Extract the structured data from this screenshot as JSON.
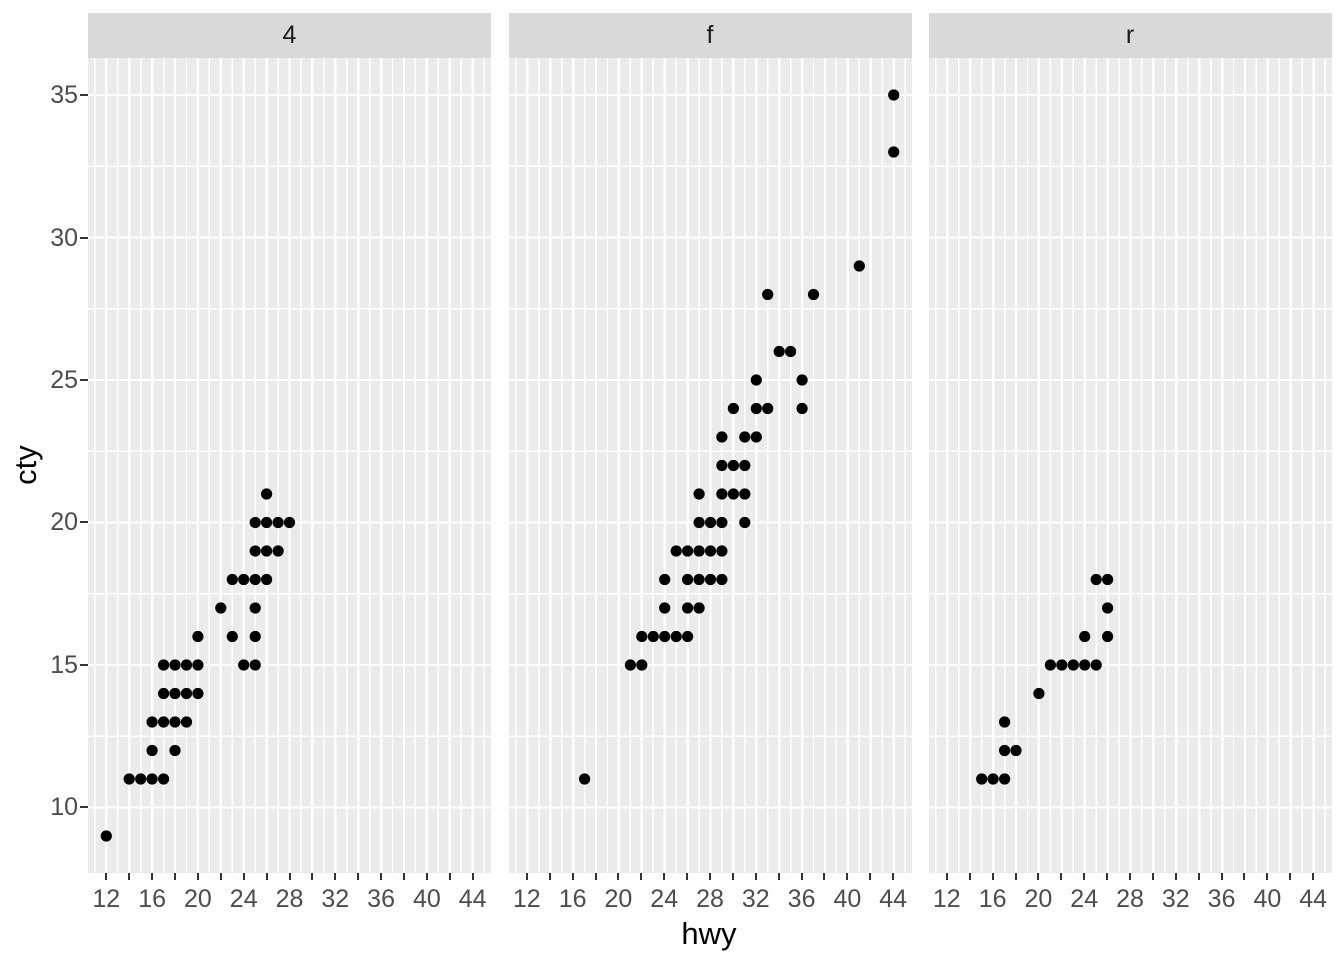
{
  "chart_data": {
    "type": "scatter",
    "title": "",
    "xlabel": "hwy",
    "ylabel": "cty",
    "facet_labels": [
      "4",
      "f",
      "r"
    ],
    "xlim": [
      10.4,
      45.6
    ],
    "ylim": [
      7.7,
      36.3
    ],
    "x_tick_labels": [
      12,
      16,
      20,
      24,
      28,
      32,
      36,
      40,
      44
    ],
    "x_tick_marks": [
      12,
      14,
      16,
      18,
      20,
      22,
      24,
      26,
      28,
      30,
      32,
      34,
      36,
      38,
      40,
      42,
      44
    ],
    "x_minor_gridlines": [
      11,
      13,
      15,
      17,
      19,
      21,
      23,
      25,
      27,
      29,
      31,
      33,
      35,
      37,
      39,
      41,
      43,
      45
    ],
    "y_tick_labels": [
      10,
      15,
      20,
      25,
      30,
      35
    ],
    "y_major_gridlines": [
      10,
      15,
      20,
      25,
      30,
      35
    ],
    "y_minor_gridlines": [
      12.5,
      17.5,
      22.5,
      27.5,
      32.5
    ],
    "grid": "on",
    "legend": "none",
    "facets": [
      {
        "label": "4",
        "points": [
          [
            12,
            9
          ],
          [
            14,
            11
          ],
          [
            15,
            11
          ],
          [
            16,
            11
          ],
          [
            17,
            11
          ],
          [
            16,
            12
          ],
          [
            18,
            12
          ],
          [
            16,
            13
          ],
          [
            17,
            13
          ],
          [
            18,
            13
          ],
          [
            19,
            13
          ],
          [
            17,
            14
          ],
          [
            18,
            14
          ],
          [
            19,
            14
          ],
          [
            20,
            14
          ],
          [
            17,
            15
          ],
          [
            18,
            15
          ],
          [
            19,
            15
          ],
          [
            20,
            15
          ],
          [
            24,
            15
          ],
          [
            25,
            15
          ],
          [
            20,
            16
          ],
          [
            23,
            16
          ],
          [
            25,
            16
          ],
          [
            22,
            17
          ],
          [
            25,
            17
          ],
          [
            23,
            18
          ],
          [
            24,
            18
          ],
          [
            25,
            18
          ],
          [
            26,
            18
          ],
          [
            25,
            19
          ],
          [
            26,
            19
          ],
          [
            27,
            19
          ],
          [
            25,
            20
          ],
          [
            26,
            20
          ],
          [
            27,
            20
          ],
          [
            28,
            20
          ],
          [
            26,
            21
          ]
        ]
      },
      {
        "label": "f",
        "points": [
          [
            17,
            11
          ],
          [
            21,
            15
          ],
          [
            22,
            15
          ],
          [
            22,
            16
          ],
          [
            23,
            16
          ],
          [
            24,
            16
          ],
          [
            25,
            16
          ],
          [
            26,
            16
          ],
          [
            24,
            17
          ],
          [
            26,
            17
          ],
          [
            27,
            17
          ],
          [
            24,
            18
          ],
          [
            26,
            18
          ],
          [
            27,
            18
          ],
          [
            28,
            18
          ],
          [
            29,
            18
          ],
          [
            25,
            19
          ],
          [
            26,
            19
          ],
          [
            27,
            19
          ],
          [
            28,
            19
          ],
          [
            29,
            19
          ],
          [
            27,
            20
          ],
          [
            28,
            20
          ],
          [
            29,
            20
          ],
          [
            31,
            20
          ],
          [
            27,
            21
          ],
          [
            29,
            21
          ],
          [
            30,
            21
          ],
          [
            31,
            21
          ],
          [
            29,
            22
          ],
          [
            30,
            22
          ],
          [
            31,
            22
          ],
          [
            29,
            23
          ],
          [
            31,
            23
          ],
          [
            32,
            23
          ],
          [
            30,
            24
          ],
          [
            32,
            24
          ],
          [
            33,
            24
          ],
          [
            36,
            24
          ],
          [
            32,
            25
          ],
          [
            36,
            25
          ],
          [
            34,
            26
          ],
          [
            35,
            26
          ],
          [
            33,
            28
          ],
          [
            37,
            28
          ],
          [
            41,
            29
          ],
          [
            44,
            33
          ],
          [
            44,
            35
          ]
        ]
      },
      {
        "label": "r",
        "points": [
          [
            15,
            11
          ],
          [
            16,
            11
          ],
          [
            17,
            11
          ],
          [
            17,
            12
          ],
          [
            18,
            12
          ],
          [
            17,
            13
          ],
          [
            20,
            14
          ],
          [
            21,
            15
          ],
          [
            22,
            15
          ],
          [
            23,
            15
          ],
          [
            24,
            15
          ],
          [
            25,
            15
          ],
          [
            24,
            16
          ],
          [
            26,
            16
          ],
          [
            26,
            17
          ],
          [
            25,
            18
          ],
          [
            26,
            18
          ]
        ]
      }
    ],
    "colors": {
      "figure_background": "#FFFFFF",
      "panel_background": "#EBEBEB",
      "gridline": "#FFFFFF",
      "strip_background": "#D9D9D9",
      "strip_text": "#1A1A1A",
      "axis_text": "#4D4D4D",
      "axis_title": "#000000",
      "tick_mark": "#333333",
      "point": "#000000"
    }
  }
}
